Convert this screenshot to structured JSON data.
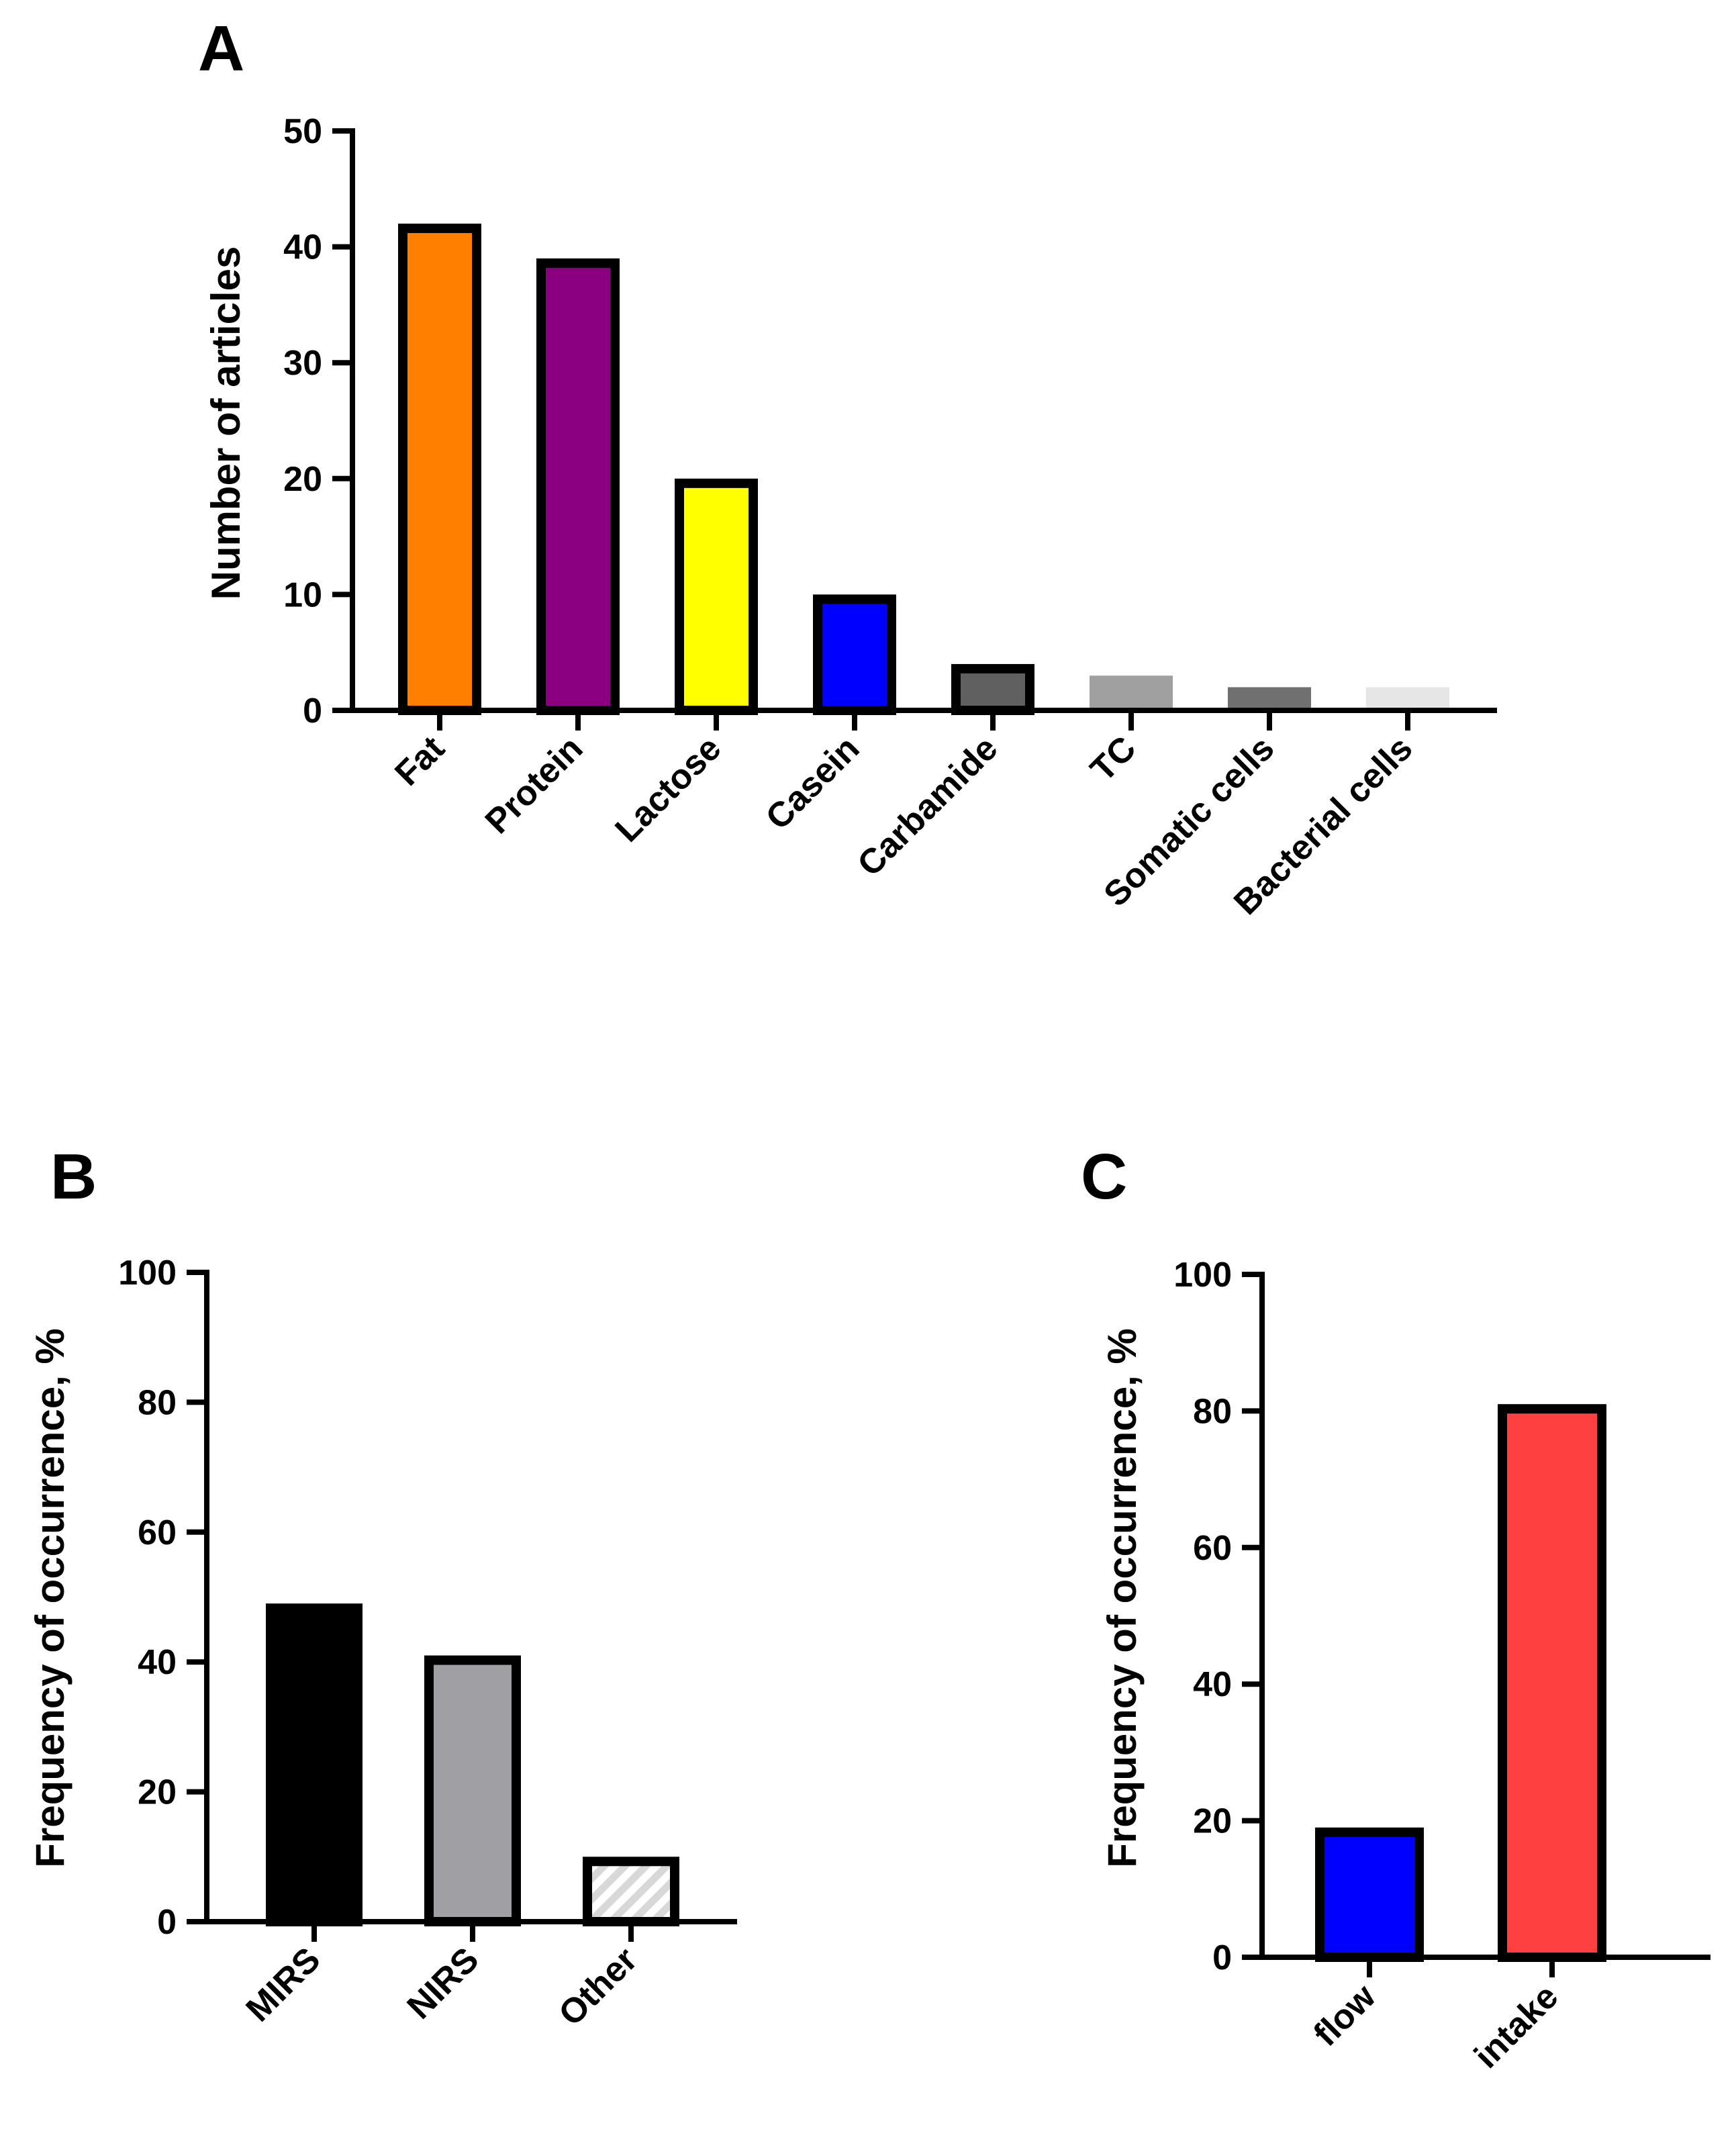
{
  "chart_data": [
    {
      "panel": "A",
      "type": "bar",
      "ylabel": "Number of articles",
      "xlabel": "",
      "ylim": [
        0,
        50
      ],
      "yticks": [
        "0",
        "10",
        "20",
        "30",
        "40",
        "50"
      ],
      "categories": [
        "Fat",
        "Protein",
        "Lactose",
        "Casein",
        "Carbamide",
        "TC",
        "Somatic cells",
        "Bacterial cells"
      ],
      "values": [
        42,
        39,
        20,
        10,
        4,
        3,
        2,
        2
      ],
      "colors": [
        "#FF8000",
        "#8B0080",
        "#FFFF00",
        "#0000FF",
        "#606060",
        "#A0A0A0",
        "#707070",
        "#E6E6E6"
      ],
      "outlined": [
        true,
        true,
        true,
        true,
        true,
        false,
        false,
        false
      ],
      "grid": false
    },
    {
      "panel": "B",
      "type": "bar",
      "ylabel": "Frequency of occurrence, %",
      "xlabel": "",
      "ylim": [
        0,
        100
      ],
      "yticks": [
        "0",
        "20",
        "40",
        "60",
        "80",
        "100"
      ],
      "categories": [
        "MIRS",
        "NIRS",
        "Other"
      ],
      "values": [
        49,
        41,
        10
      ],
      "colors": [
        "#000000",
        "#A0A0A4",
        "#D8D8D8"
      ],
      "outlined": [
        true,
        true,
        true
      ],
      "hatched": [
        false,
        false,
        true
      ],
      "grid": false
    },
    {
      "panel": "C",
      "type": "bar",
      "ylabel": "Frequency of occurrence, %",
      "xlabel": "",
      "ylim": [
        0,
        100
      ],
      "yticks": [
        "0",
        "20",
        "40",
        "60",
        "80",
        "100"
      ],
      "categories": [
        "flow",
        "intake"
      ],
      "values": [
        19,
        81
      ],
      "colors": [
        "#0000FF",
        "#FF4040"
      ],
      "outlined": [
        true,
        true
      ],
      "grid": false
    }
  ]
}
